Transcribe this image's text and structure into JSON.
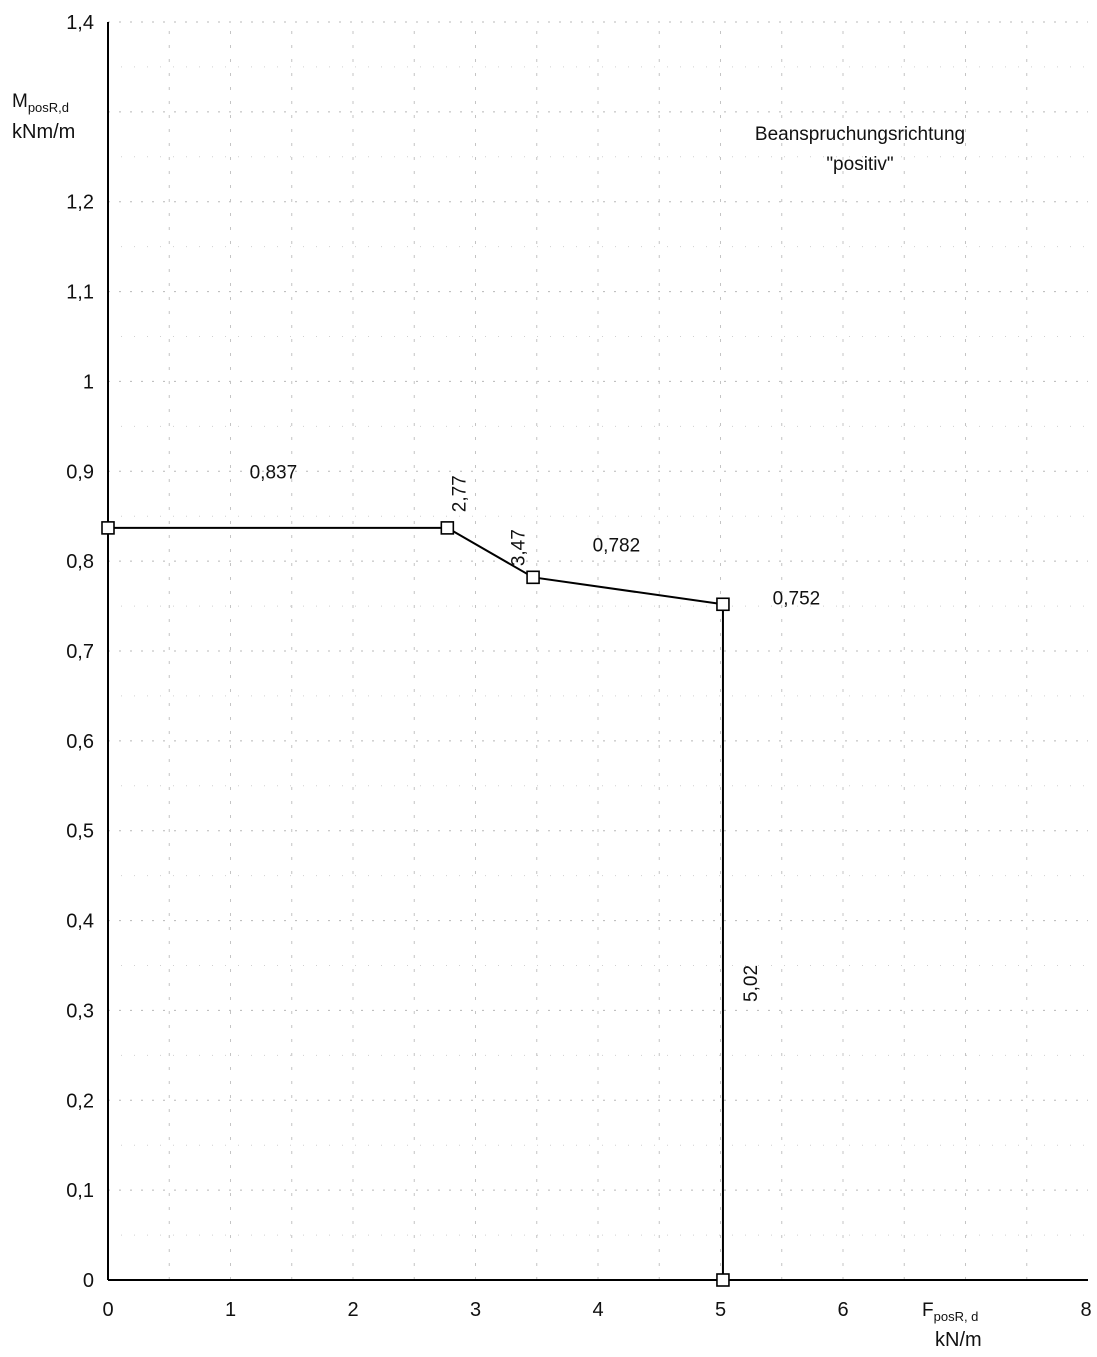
{
  "chart_data": {
    "type": "line",
    "title": "Beanspruchungsrichtung",
    "subtitle": "\"positiv\"",
    "xlabel": {
      "symbol": "F",
      "subscript": "posR, d",
      "unit": "kN/m"
    },
    "ylabel": {
      "symbol": "M",
      "subscript": "posR,d",
      "unit": "kNm/m"
    },
    "xlim": [
      0,
      8
    ],
    "ylim": [
      0,
      1.4
    ],
    "xticks": [
      0,
      1,
      2,
      3,
      4,
      5,
      6,
      8
    ],
    "xtick_labels": [
      "0",
      "1",
      "2",
      "3",
      "4",
      "5",
      "6",
      "8"
    ],
    "yticks": [
      0,
      0.1,
      0.2,
      0.3,
      0.4,
      0.5,
      0.6,
      0.7,
      0.8,
      0.9,
      1.0,
      1.1,
      1.2,
      1.4
    ],
    "ytick_labels": [
      "0",
      "0,1",
      "0,2",
      "0,3",
      "0,4",
      "0,5",
      "0,6",
      "0,7",
      "0,8",
      "0,9",
      "1",
      "1,1",
      "1,2",
      "1,4"
    ],
    "grid": true,
    "series": [
      {
        "x": [
          0,
          0,
          2.77,
          3.47,
          5.02,
          5.02
        ],
        "y": [
          0,
          0.837,
          0.837,
          0.782,
          0.752,
          0
        ],
        "color": "#000000"
      }
    ],
    "annotations": [
      {
        "text": "0,837",
        "x": 1.35,
        "y": 0.892,
        "rotate": false
      },
      {
        "text": "2,77",
        "x": 2.92,
        "y": 0.875,
        "rotate": true
      },
      {
        "text": "3,47",
        "x": 3.4,
        "y": 0.815,
        "rotate": true
      },
      {
        "text": "0,782",
        "x": 4.15,
        "y": 0.811,
        "rotate": false
      },
      {
        "text": "0,752",
        "x": 5.62,
        "y": 0.752,
        "rotate": false
      },
      {
        "text": "5,02",
        "x": 5.3,
        "y": 0.33,
        "rotate": true
      }
    ]
  }
}
